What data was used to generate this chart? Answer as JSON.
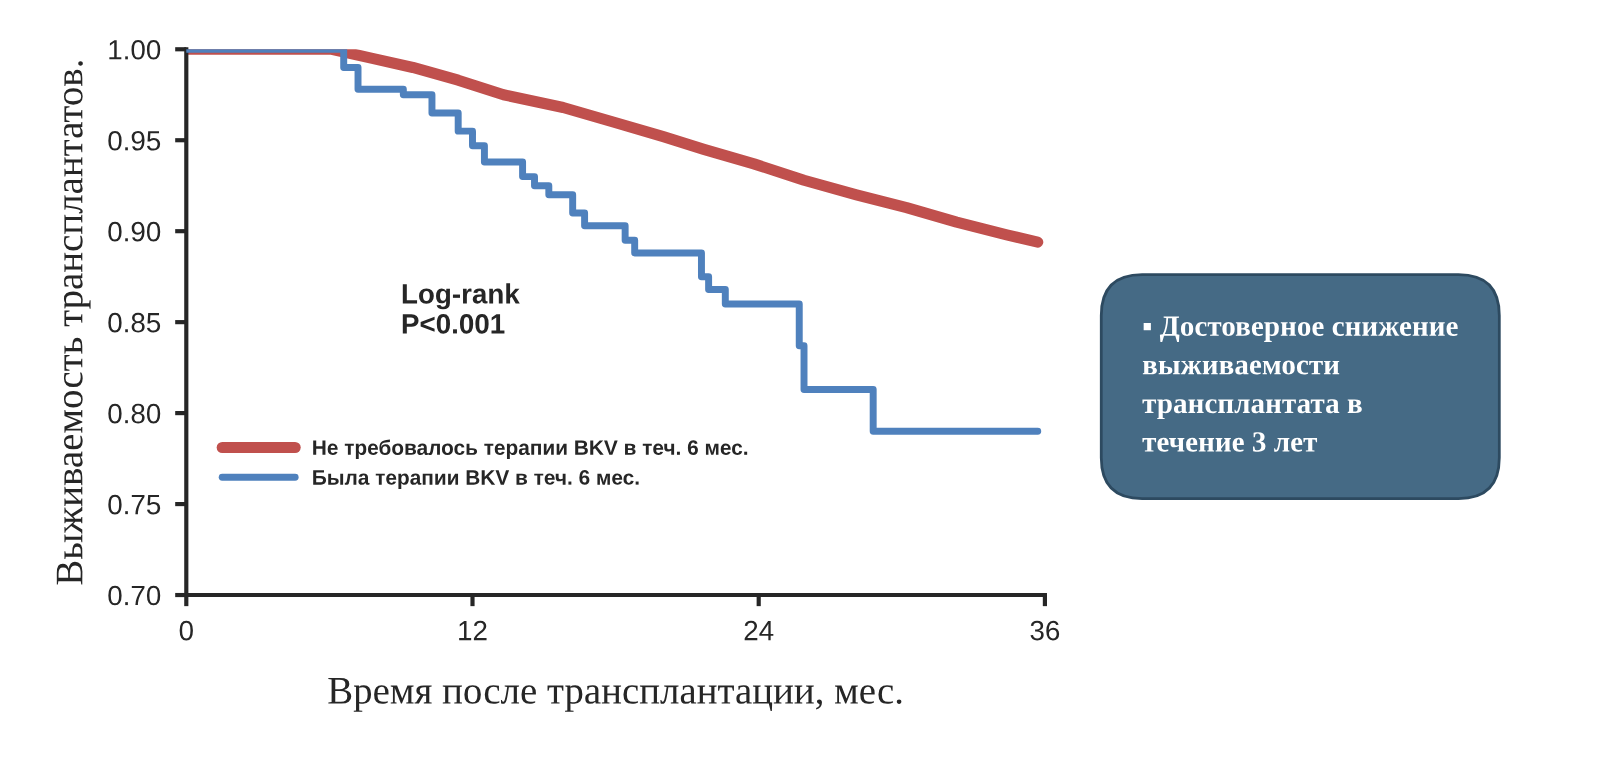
{
  "chart_data": {
    "type": "step",
    "xlabel": "Время после трансплантации, мес.",
    "ylabel": "Выживаемость трансплантатов.",
    "xlim": [
      0,
      36
    ],
    "xticks": [
      0,
      12,
      24,
      36
    ],
    "ylim": [
      0.7,
      1.0
    ],
    "yticks": [
      {
        "value": 0.7,
        "label": "0.70"
      },
      {
        "value": 0.75,
        "label": "0.75"
      },
      {
        "value": 0.8,
        "label": "0.80"
      },
      {
        "value": 0.85,
        "label": "0.85"
      },
      {
        "value": 0.9,
        "label": "0.90"
      },
      {
        "value": 0.95,
        "label": "0.95"
      },
      {
        "value": 1.0,
        "label": "1.00"
      }
    ],
    "grid": false,
    "legend": "bottom left",
    "annotations": [
      "Log-rank\nP<0.001",
      "▪ Достоверное снижение\nвыживаемости\nтрансплантата в\nтечение 3 лет"
    ],
    "series": [
      {
        "name": "Не требовалось терапии BKV в теч. 6 мес.",
        "type": "line",
        "color": "#c0504d",
        "x": [
          0,
          6.1,
          7.8,
          9.5,
          11.4,
          13.3,
          15.8,
          17.9,
          20.0,
          21.7,
          23.8,
          25.9,
          28.1,
          30.2,
          32.3,
          34.4,
          35.7
        ],
        "values": [
          1.0,
          1.0,
          0.995,
          0.99,
          0.983,
          0.975,
          0.968,
          0.96,
          0.952,
          0.945,
          0.937,
          0.928,
          0.92,
          0.913,
          0.905,
          0.898,
          0.894
        ]
      },
      {
        "name": "Была терапии BKV в теч. 6 мес.",
        "color": "#4f81bd",
        "x": [
          0,
          6.1,
          6.6,
          7.2,
          9.1,
          10.3,
          11.4,
          12.0,
          12.5,
          14.1,
          14.6,
          15.2,
          16.2,
          16.7,
          17.1,
          18.4,
          18.8,
          19.7,
          21.6,
          21.9,
          22.6,
          23.1,
          25.7,
          25.9,
          28.8,
          35.7
        ],
        "values": [
          1.0,
          1.0,
          0.99,
          0.978,
          0.975,
          0.965,
          0.955,
          0.947,
          0.938,
          0.93,
          0.925,
          0.92,
          0.91,
          0.903,
          0.903,
          0.895,
          0.888,
          0.888,
          0.875,
          0.868,
          0.86,
          0.86,
          0.837,
          0.813,
          0.79,
          0.79
        ]
      }
    ]
  }
}
